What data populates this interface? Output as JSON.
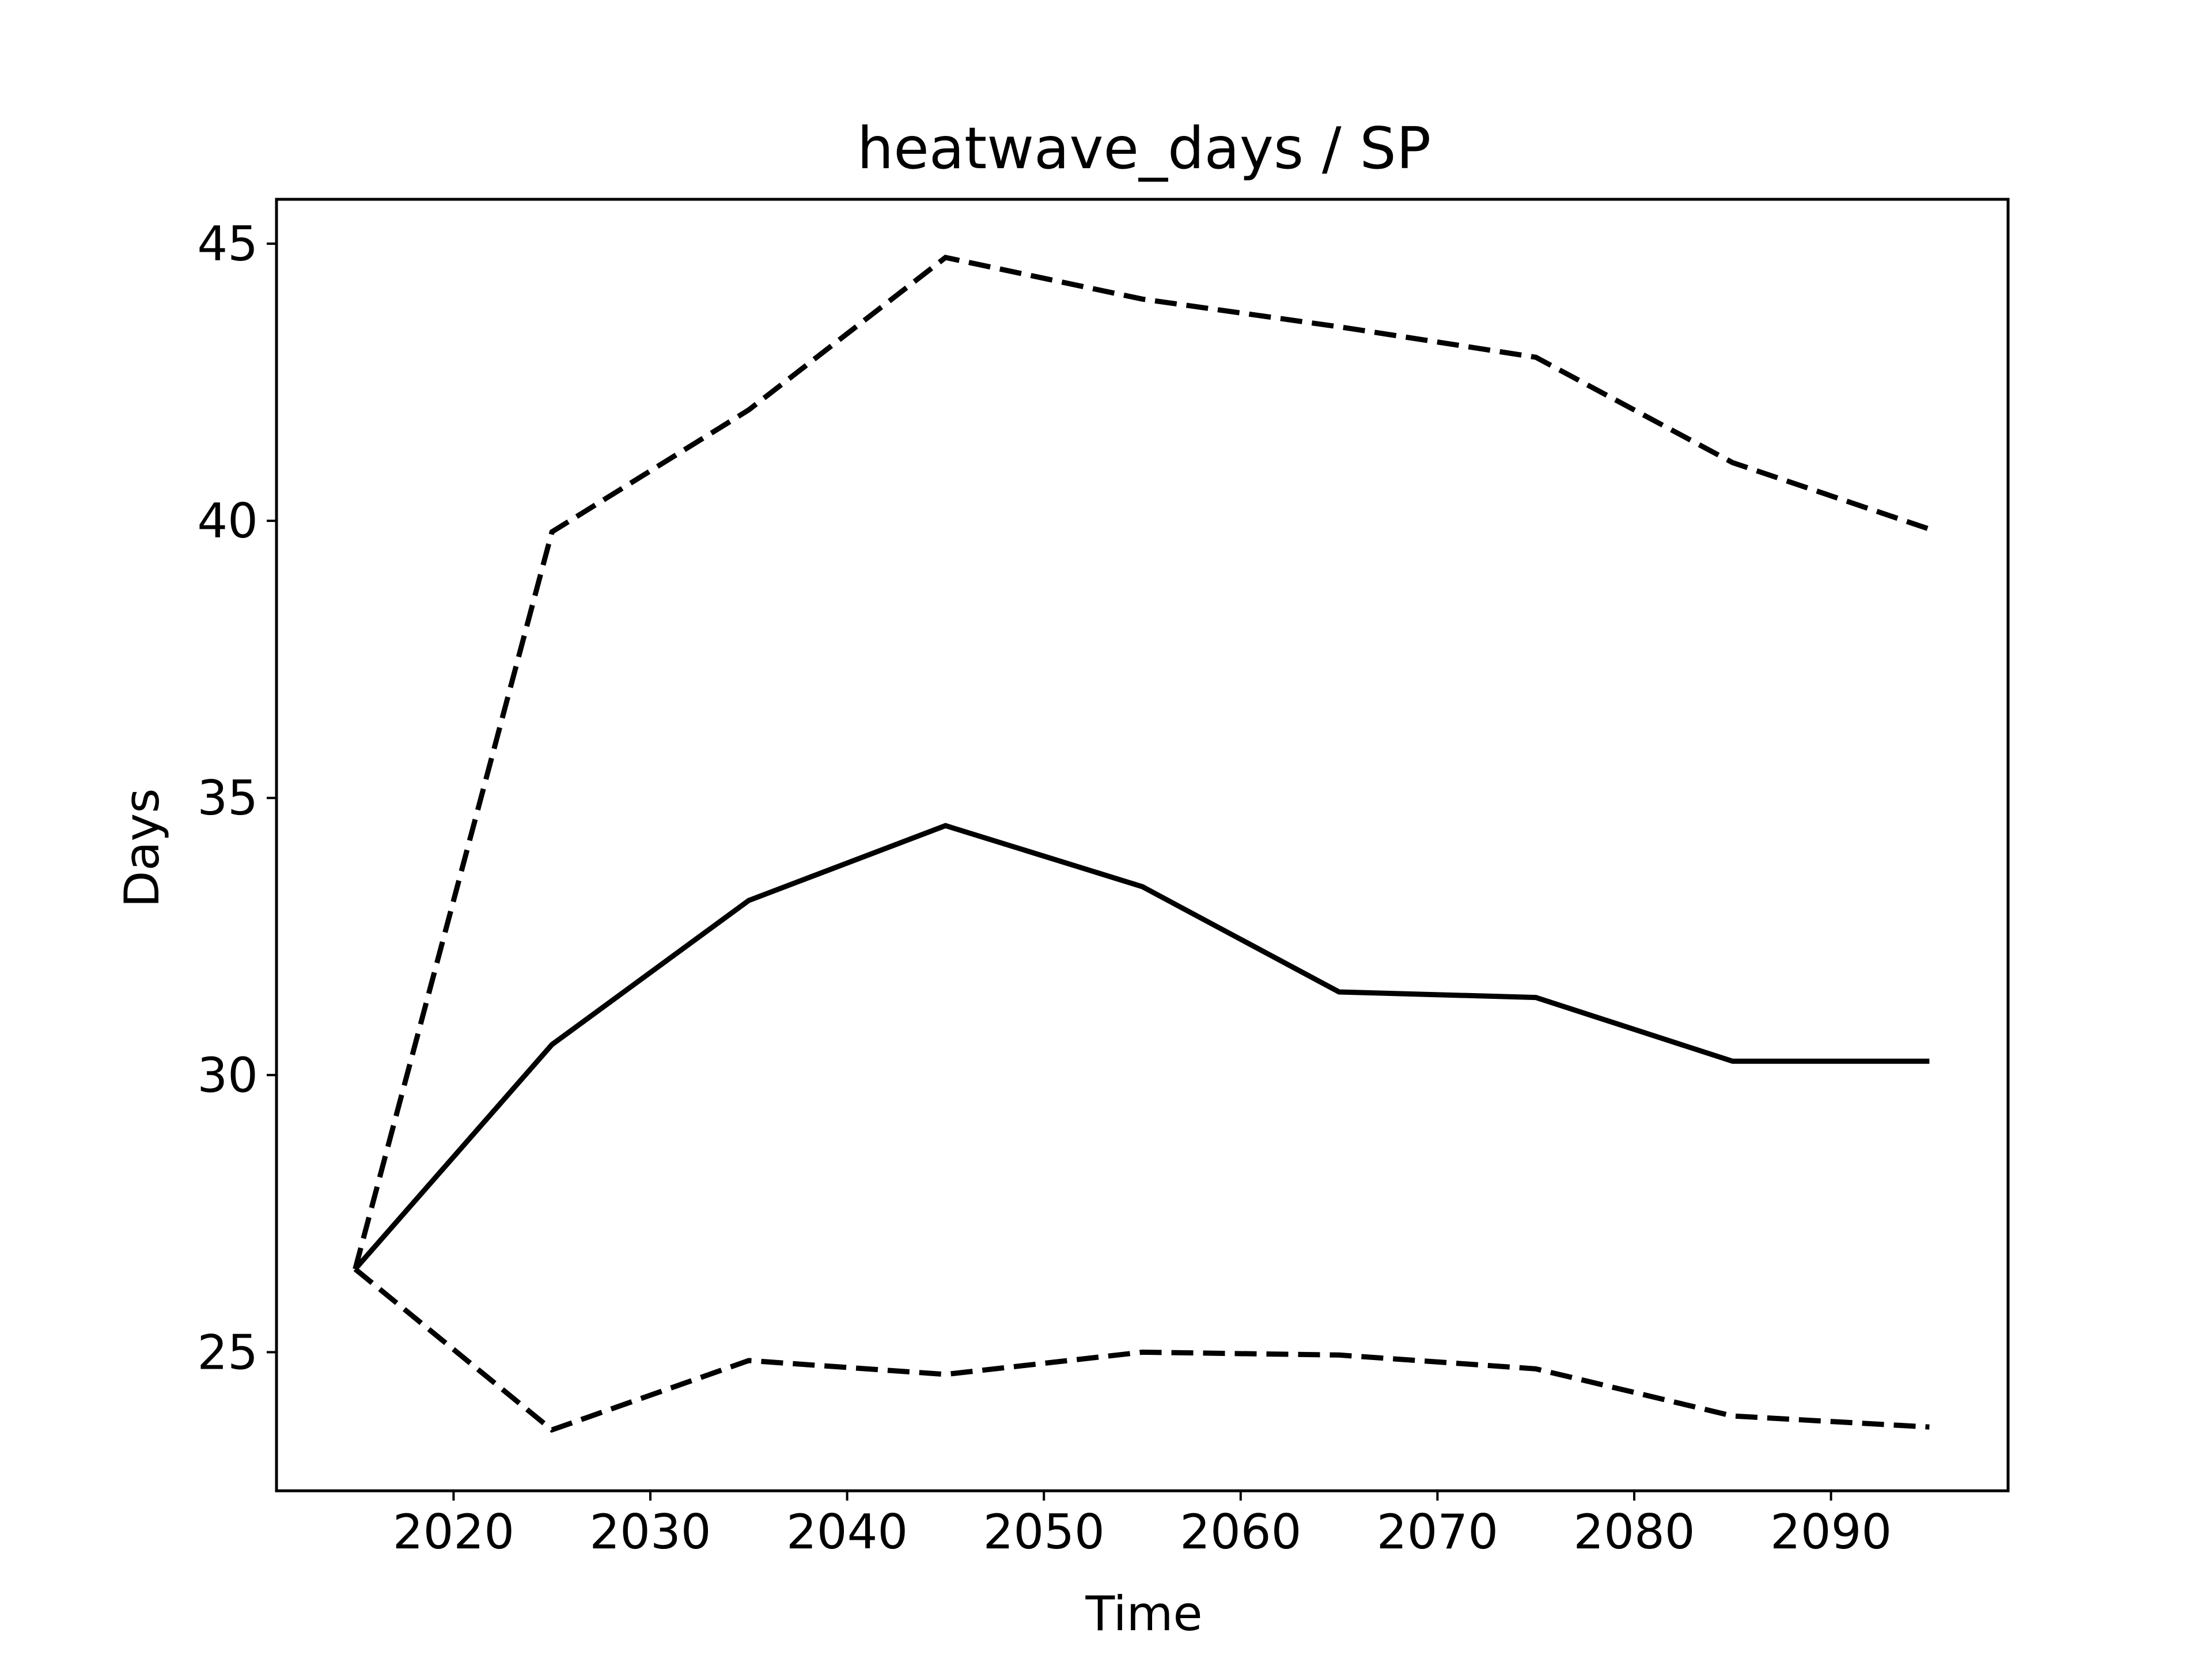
{
  "chart_data": {
    "type": "line",
    "title": "heatwave_days / SP",
    "xlabel": "Time",
    "ylabel": "Days",
    "x": [
      2015,
      2025,
      2035,
      2045,
      2055,
      2065,
      2075,
      2085,
      2095
    ],
    "xlim": [
      2011,
      2099
    ],
    "ylim": [
      22.5,
      45.8
    ],
    "xticks": [
      2020,
      2030,
      2040,
      2050,
      2060,
      2070,
      2080,
      2090
    ],
    "yticks": [
      25,
      30,
      35,
      40,
      45
    ],
    "grid": false,
    "series": [
      {
        "style": "solid",
        "color": "#000000",
        "values": [
          26.5,
          30.55,
          33.15,
          34.5,
          33.4,
          31.5,
          31.4,
          30.25,
          30.25
        ]
      },
      {
        "style": "dashed",
        "color": "#000000",
        "values": [
          26.5,
          39.8,
          42.0,
          44.75,
          44.0,
          43.5,
          42.95,
          41.05,
          39.85
        ]
      },
      {
        "style": "dashed",
        "color": "#000000",
        "values": [
          26.5,
          23.6,
          24.85,
          24.6,
          25.0,
          24.95,
          24.7,
          23.85,
          23.65
        ]
      }
    ]
  }
}
